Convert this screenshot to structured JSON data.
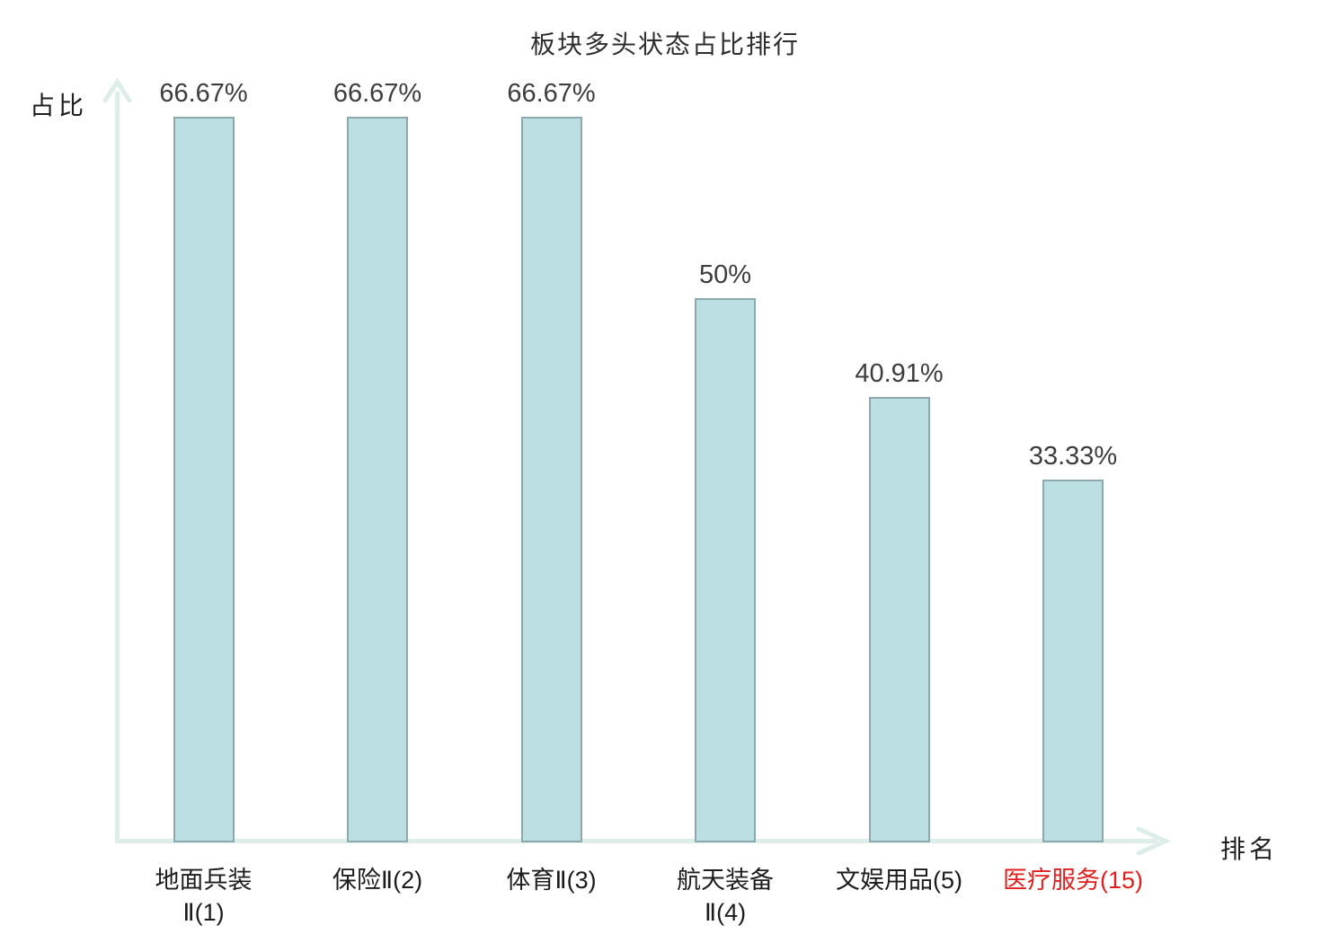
{
  "title": "板块多头状态占比排行",
  "axes": {
    "y_label": "占比",
    "x_label": "排名"
  },
  "colors": {
    "bar_fill": "#bcdfe4",
    "bar_border": "#8ea9ad",
    "axis_line": "#ddeeea",
    "value_text": "#3d3d3d",
    "category_text": "#1c1c1c",
    "highlight_text": "#e02020",
    "title_text": "#2e2e2e"
  },
  "chart_data": {
    "type": "bar",
    "title": "板块多头状态占比排行",
    "xlabel": "排名",
    "ylabel": "占比",
    "ylim": [
      0,
      66.67
    ],
    "grid": false,
    "legend_position": "none",
    "categories": [
      "地面兵装Ⅱ(1)",
      "保险Ⅱ(2)",
      "体育Ⅱ(3)",
      "航天装备Ⅱ(4)",
      "文娱用品(5)",
      "医疗服务(15)"
    ],
    "category_lines": [
      [
        "地面兵装",
        "Ⅱ(1)"
      ],
      [
        "保险Ⅱ(2)"
      ],
      [
        "体育Ⅱ(3)"
      ],
      [
        "航天装备",
        "Ⅱ(4)"
      ],
      [
        "文娱用品(5)"
      ],
      [
        "医疗服务(15)"
      ]
    ],
    "values": [
      66.67,
      66.67,
      66.67,
      50,
      40.91,
      33.33
    ],
    "value_labels": [
      "66.67%",
      "66.67%",
      "66.67%",
      "50%",
      "40.91%",
      "33.33%"
    ],
    "highlight_index": 5
  }
}
